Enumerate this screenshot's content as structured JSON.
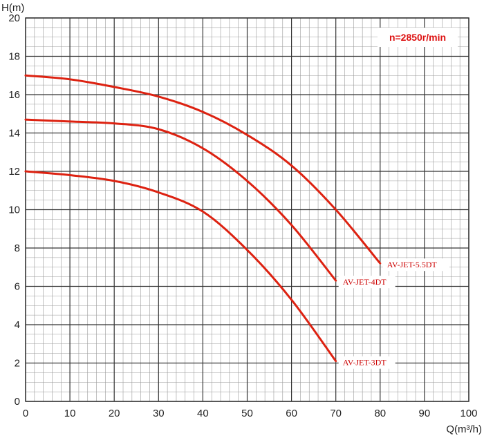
{
  "chart_data": {
    "type": "line",
    "title": "",
    "xlabel": "Q(m³/h)",
    "ylabel": "H(m)",
    "xlim": [
      0,
      100
    ],
    "ylim": [
      0,
      20
    ],
    "x_ticks": [
      "0",
      "10",
      "20",
      "30",
      "40",
      "50",
      "60",
      "70",
      "80",
      "90",
      "100"
    ],
    "y_ticks": [
      "0",
      "2",
      "4",
      "6",
      "8",
      "10",
      "12",
      "14",
      "16",
      "18",
      "20"
    ],
    "grid": true,
    "annotation": "n=2850r/min",
    "line_color": "#dd2211",
    "series": [
      {
        "name": "AV-JET-5.5DT",
        "x": [
          0,
          10,
          20,
          30,
          40,
          50,
          60,
          70,
          80
        ],
        "y": [
          17.0,
          16.8,
          16.4,
          15.9,
          15.1,
          13.9,
          12.3,
          10.0,
          7.2
        ]
      },
      {
        "name": "AV-JET-4DT",
        "x": [
          0,
          10,
          20,
          30,
          40,
          50,
          60,
          70
        ],
        "y": [
          14.7,
          14.6,
          14.5,
          14.2,
          13.2,
          11.5,
          9.2,
          6.3
        ]
      },
      {
        "name": "AV-JET-3DT",
        "x": [
          0,
          10,
          20,
          30,
          40,
          50,
          60,
          70
        ],
        "y": [
          12.0,
          11.8,
          11.5,
          10.9,
          9.9,
          7.9,
          5.3,
          2.1
        ]
      }
    ]
  }
}
